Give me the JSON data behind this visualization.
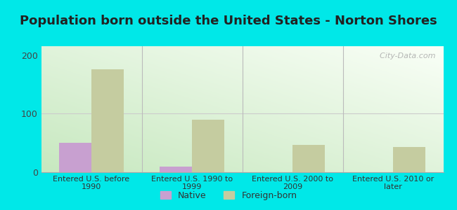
{
  "title": "Population born outside the United States - Norton Shores",
  "categories": [
    "Entered U.S. before\n1990",
    "Entered U.S. 1990 to\n1999",
    "Entered U.S. 2000 to\n2009",
    "Entered U.S. 2010 or\nlater"
  ],
  "native_values": [
    50,
    10,
    0,
    0
  ],
  "foreign_values": [
    175,
    90,
    47,
    43
  ],
  "native_color": "#c8a0d0",
  "foreign_color": "#c5cca0",
  "ylim": [
    0,
    215
  ],
  "yticks": [
    0,
    100,
    200
  ],
  "bar_width": 0.32,
  "outer_bg": "#00e8e8",
  "title_fontsize": 13,
  "legend_native": "Native",
  "legend_foreign": "Foreign-born",
  "watermark": "  City-Data.com",
  "title_color": "#222222"
}
